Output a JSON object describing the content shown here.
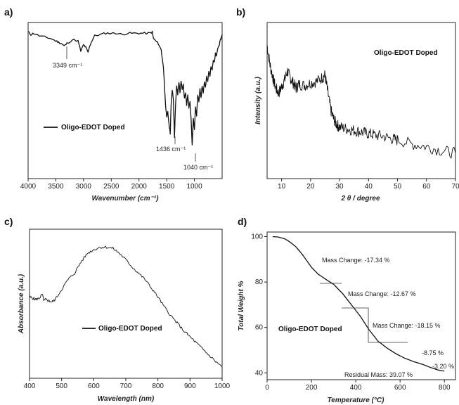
{
  "chart_data": [
    {
      "panel": "a)",
      "type": "line",
      "xlabel": "Wavenumber (cm⁻¹)",
      "ylabel": "",
      "x_reversed": true,
      "xlim": [
        4000,
        500
      ],
      "xticks": [
        4000,
        3500,
        3000,
        2500,
        2000,
        1500,
        1000
      ],
      "legend": "Oligo-EDOT Doped",
      "legend_position": "bottom-left",
      "y_units": "relative transmittance (no axis labels)",
      "series": [
        {
          "name": "Oligo-EDOT Doped",
          "x": [
            4000,
            3950,
            3900,
            3800,
            3700,
            3600,
            3500,
            3450,
            3400,
            3349,
            3300,
            3200,
            3100,
            3050,
            3000,
            2960,
            2920,
            2880,
            2850,
            2800,
            2700,
            2600,
            2500,
            2400,
            2300,
            2200,
            2100,
            2000,
            1900,
            1800,
            1760,
            1740,
            1700,
            1650,
            1600,
            1560,
            1520,
            1500,
            1480,
            1460,
            1436,
            1420,
            1400,
            1380,
            1360,
            1340,
            1320,
            1300,
            1280,
            1260,
            1240,
            1220,
            1200,
            1180,
            1160,
            1140,
            1120,
            1100,
            1080,
            1060,
            1040,
            1020,
            1000,
            980,
            960,
            940,
            920,
            900,
            880,
            860,
            840,
            820,
            800,
            780,
            760,
            740,
            720,
            700,
            680,
            660,
            640,
            620,
            600,
            580,
            560,
            540,
            520,
            500
          ],
          "y": [
            97,
            95,
            96,
            94,
            93,
            92,
            90,
            89,
            88,
            86,
            88,
            91,
            90,
            82,
            87,
            85,
            81,
            87,
            90,
            94,
            95,
            96,
            96,
            96,
            95,
            96,
            96,
            96,
            96,
            96,
            97,
            92,
            90,
            88,
            83,
            70,
            40,
            30,
            35,
            25,
            18,
            40,
            52,
            45,
            15,
            40,
            55,
            48,
            58,
            50,
            58,
            52,
            56,
            45,
            50,
            40,
            48,
            38,
            42,
            30,
            8,
            30,
            20,
            38,
            32,
            48,
            42,
            52,
            46,
            55,
            50,
            58,
            54,
            62,
            58,
            66,
            63,
            70,
            68,
            75,
            73,
            80,
            78,
            84,
            86,
            89,
            92,
            95
          ]
        }
      ],
      "annotations": [
        "3349 cm⁻¹",
        "1436 cm⁻¹",
        "1040 cm⁻¹"
      ]
    },
    {
      "panel": "b)",
      "type": "line",
      "xlabel": "2 θ / degree",
      "ylabel": "Intensity (a.u.)",
      "xlim": [
        5,
        70
      ],
      "xticks": [
        10,
        20,
        30,
        40,
        50,
        60,
        70
      ],
      "legend": "Oligo-EDOT Doped",
      "legend_position": "top-right",
      "series": [
        {
          "name": "Oligo-EDOT Doped",
          "x": [
            5,
            6,
            7,
            8,
            9,
            10,
            11,
            12,
            13,
            14,
            15,
            16,
            18,
            20,
            22,
            24,
            25,
            26,
            27,
            28,
            29,
            30,
            32,
            34,
            36,
            38,
            40,
            42,
            45,
            48,
            50,
            55,
            60,
            65,
            70
          ],
          "y": [
            95,
            80,
            70,
            62,
            58,
            63,
            68,
            75,
            70,
            66,
            62,
            65,
            64,
            66,
            67,
            70,
            72,
            58,
            45,
            38,
            34,
            32,
            31,
            30,
            29,
            28,
            27,
            26,
            25,
            23,
            22,
            19,
            17,
            14,
            12
          ]
        }
      ]
    },
    {
      "panel": "c)",
      "type": "line",
      "xlabel": "Wavelength (nm)",
      "ylabel": "Absorbance (a.u.)",
      "xlim": [
        400,
        1000
      ],
      "xticks": [
        400,
        500,
        600,
        700,
        800,
        900,
        1000
      ],
      "legend": "Oligo-EDOT Doped",
      "legend_position": "center-right",
      "series": [
        {
          "name": "Oligo-EDOT Doped",
          "x": [
            400,
            410,
            420,
            430,
            440,
            445,
            450,
            460,
            470,
            480,
            500,
            520,
            540,
            560,
            580,
            600,
            620,
            640,
            660,
            680,
            700,
            720,
            740,
            760,
            780,
            800,
            820,
            840,
            860,
            880,
            900,
            920,
            940,
            960,
            980,
            1000
          ],
          "y": [
            58,
            57,
            56,
            57,
            60,
            55,
            56,
            55,
            54,
            56,
            64,
            72,
            77,
            86,
            93,
            96,
            98,
            98,
            97,
            93,
            88,
            82,
            77,
            72,
            65,
            58,
            50,
            43,
            37,
            31,
            26,
            21,
            16,
            11,
            6,
            2
          ]
        }
      ]
    },
    {
      "panel": "d)",
      "type": "line",
      "xlabel": "Temperature (°C)",
      "ylabel": "Total Weight %",
      "xlim": [
        0,
        850
      ],
      "ylim": [
        37,
        102
      ],
      "xticks": [
        0,
        200,
        400,
        600,
        800
      ],
      "yticks": [
        40,
        60,
        80,
        100
      ],
      "legend": "Oligo-EDOT Doped",
      "legend_position": "center",
      "series": [
        {
          "name": "Oligo-EDOT Doped",
          "x": [
            25,
            50,
            80,
            100,
            130,
            160,
            200,
            230,
            260,
            300,
            340,
            380,
            420,
            460,
            500,
            540,
            580,
            620,
            660,
            700,
            740,
            780,
            800
          ],
          "y": [
            100,
            99.8,
            99,
            97.8,
            95.5,
            92,
            86.5,
            83.5,
            81.5,
            79,
            75,
            70,
            65,
            59,
            54,
            51,
            48.5,
            46.5,
            45,
            43.8,
            42.3,
            41,
            40.8
          ]
        }
      ],
      "annotations": [
        "Mass Change: -17.34 %",
        "Mass Change: -12.67 %",
        "Mass Change: -18.15 %",
        "-8.75 %",
        "-3.20 %",
        "Residual Mass: 39.07 %"
      ]
    }
  ],
  "panels": {
    "a": {
      "label": "a)",
      "xlabel": "Wavenumber (cm⁻¹)",
      "xticks": [
        "4000",
        "3500",
        "3000",
        "2500",
        "2000",
        "1500",
        "1000"
      ],
      "legend": "Oligo-EDOT Doped",
      "ann1": "3349 cm⁻¹",
      "ann2": "1436 cm⁻¹",
      "ann3": "1040 cm⁻¹"
    },
    "b": {
      "label": "b)",
      "xlabel": "2 θ / degree",
      "ylabel": "Intensity (a.u.)",
      "xticks": [
        "10",
        "20",
        "30",
        "40",
        "50",
        "60",
        "70"
      ],
      "legend": "Oligo-EDOT Doped"
    },
    "c": {
      "label": "c)",
      "xlabel": "Wavelength (nm)",
      "ylabel": "Absorbance (a.u.)",
      "xticks": [
        "400",
        "500",
        "600",
        "700",
        "800",
        "900",
        "1000"
      ],
      "legend": "Oligo-EDOT Doped"
    },
    "d": {
      "label": "d)",
      "xlabel": "Temperature (°C)",
      "ylabel": "Total Weight %",
      "xticks": [
        "0",
        "200",
        "400",
        "600",
        "800"
      ],
      "yticks": [
        "40",
        "60",
        "80",
        "100"
      ],
      "legend": "Oligo-EDOT Doped",
      "ann1": "Mass Change: -17.34 %",
      "ann2": "Mass Change: -12.67 %",
      "ann3": "Mass Change: -18.15 %",
      "ann4": "-8.75 %",
      "ann5": "-3.20 %",
      "ann6": "Residual Mass: 39.07 %"
    }
  }
}
